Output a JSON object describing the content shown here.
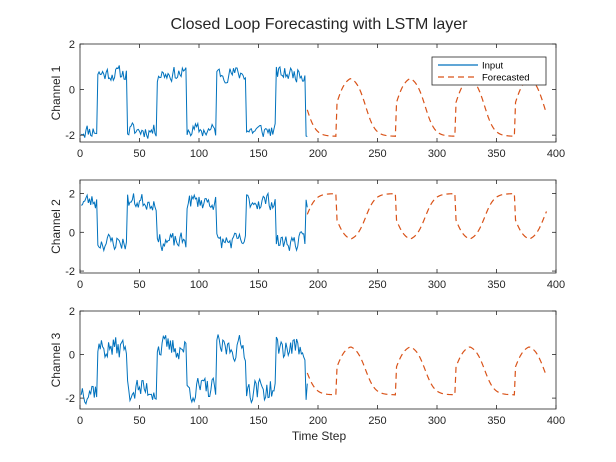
{
  "chart_data": {
    "type": "line",
    "title": "Closed Loop Forecasting with LSTM layer",
    "xlabel": "Time Step",
    "colors": {
      "input": "#0072BD",
      "forecast": "#D95319",
      "axis": "#262626"
    },
    "legend": {
      "position": "top-right",
      "entries": [
        "Input",
        "Forecasted"
      ]
    },
    "panels": [
      {
        "ylabel": "Channel 1",
        "xlim": [
          0,
          400
        ],
        "ylim": [
          -2.3,
          2
        ],
        "xticks": [
          0,
          50,
          100,
          150,
          200,
          250,
          300,
          350,
          400
        ],
        "xtick_labels": [
          "0",
          "50",
          "100",
          "150",
          "200",
          "250",
          "300",
          "350",
          "400"
        ],
        "yticks": [
          -2,
          0,
          2
        ],
        "ytick_labels": [
          "-2",
          "0",
          "2"
        ],
        "input": {
          "start": 1,
          "end": 191,
          "levels": [
            -1.8,
            0.7
          ],
          "noise": 0.3,
          "seed": 11
        },
        "forecast": {
          "start": 191,
          "end": 392,
          "levels": [
            -2.05,
            0.6
          ]
        }
      },
      {
        "ylabel": "Channel 2",
        "xlim": [
          0,
          400
        ],
        "ylim": [
          -2.1,
          2.7
        ],
        "xticks": [
          0,
          50,
          100,
          150,
          200,
          250,
          300,
          350,
          400
        ],
        "xtick_labels": [
          "0",
          "50",
          "100",
          "150",
          "200",
          "250",
          "300",
          "350",
          "400"
        ],
        "yticks": [
          -2,
          0,
          2
        ],
        "ytick_labels": [
          "-2",
          "0",
          "2"
        ],
        "input": {
          "start": 1,
          "end": 191,
          "levels": [
            1.6,
            -0.5
          ],
          "noise": 0.4,
          "seed": 23
        },
        "forecast": {
          "start": 191,
          "end": 392,
          "levels": [
            2.0,
            -0.45
          ]
        }
      },
      {
        "ylabel": "Channel 3",
        "xlim": [
          0,
          400
        ],
        "ylim": [
          -2.5,
          2
        ],
        "xticks": [
          0,
          50,
          100,
          150,
          200,
          250,
          300,
          350,
          400
        ],
        "xtick_labels": [
          "0",
          "50",
          "100",
          "150",
          "200",
          "250",
          "300",
          "350",
          "400"
        ],
        "yticks": [
          -2,
          0,
          2
        ],
        "ytick_labels": [
          "-2",
          "0",
          "2"
        ],
        "input": {
          "start": 1,
          "end": 191,
          "levels": [
            -1.6,
            0.3
          ],
          "noise": 0.5,
          "seed": 37
        },
        "forecast": {
          "start": 191,
          "end": 392,
          "levels": [
            -1.85,
            0.45
          ]
        }
      }
    ],
    "cycle": {
      "period": 50,
      "phase": 15,
      "high_fraction": 0.5
    }
  }
}
